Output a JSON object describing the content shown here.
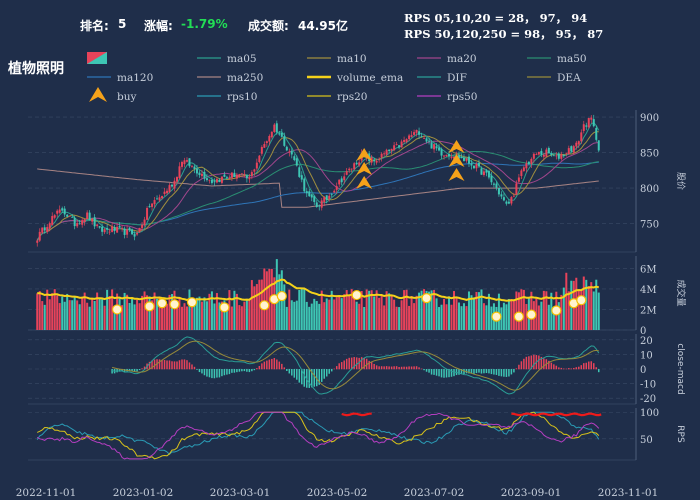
{
  "header": {
    "rank_label": "排名:",
    "rank_value": "5",
    "change_label": "涨幅:",
    "change_value": "-1.79%",
    "turnover_label": "成交额:",
    "turnover_value": "44.95亿",
    "rps_line1": "RPS 05,10,20 = 28， 97， 94",
    "rps_line2": "RPS 50,120,250 = 98， 95， 87",
    "sector": "植物照明"
  },
  "colors": {
    "background": "#1f2e4a",
    "up": "#e8435a",
    "down": "#3ec6b4",
    "ma05": "#2b9e8e",
    "ma10": "#a08e3e",
    "ma20": "#a0468c",
    "ma50": "#2a8e72",
    "ma120": "#2f75b8",
    "ma250": "#a88484",
    "volume_ema": "#f5d21a",
    "DIF": "#2a9e96",
    "DEA": "#968a3a",
    "buy": "#f5a21a",
    "rps10": "#2a9ab4",
    "rps20": "#d8c21a",
    "rps50": "#b43ec0"
  },
  "chart_data": [
    {
      "type": "candlestick",
      "panel": "price",
      "ylabel": "股价",
      "yticks": [
        750,
        800,
        850,
        900
      ],
      "ylim": [
        710,
        910
      ],
      "key_closes": [
        [
          0,
          730
        ],
        [
          5,
          755
        ],
        [
          10,
          770
        ],
        [
          15,
          750
        ],
        [
          20,
          762
        ],
        [
          25,
          740
        ],
        [
          30,
          742
        ],
        [
          40,
          735
        ],
        [
          45,
          775
        ],
        [
          50,
          790
        ],
        [
          55,
          810
        ],
        [
          58,
          840
        ],
        [
          62,
          830
        ],
        [
          65,
          822
        ],
        [
          70,
          810
        ],
        [
          75,
          815
        ],
        [
          80,
          820
        ],
        [
          85,
          812
        ],
        [
          90,
          855
        ],
        [
          95,
          888
        ],
        [
          98,
          870
        ],
        [
          103,
          840
        ],
        [
          108,
          790
        ],
        [
          112,
          775
        ],
        [
          116,
          785
        ],
        [
          120,
          805
        ],
        [
          125,
          825
        ],
        [
          130,
          845
        ],
        [
          135,
          838
        ],
        [
          140,
          850
        ],
        [
          145,
          860
        ],
        [
          150,
          875
        ],
        [
          153,
          880
        ],
        [
          158,
          860
        ],
        [
          162,
          850
        ],
        [
          166,
          848
        ],
        [
          170,
          842
        ],
        [
          175,
          832
        ],
        [
          180,
          818
        ],
        [
          184,
          800
        ],
        [
          188,
          775
        ],
        [
          190,
          785
        ],
        [
          195,
          830
        ],
        [
          200,
          848
        ],
        [
          204,
          850
        ],
        [
          208,
          842
        ],
        [
          212,
          852
        ],
        [
          216,
          860
        ],
        [
          219,
          888
        ],
        [
          222,
          897
        ],
        [
          225,
          858
        ]
      ],
      "ma250_points": [
        [
          0,
          827
        ],
        [
          40,
          812
        ],
        [
          70,
          803
        ],
        [
          97,
          807
        ],
        [
          98,
          773
        ],
        [
          108,
          773
        ],
        [
          140,
          787
        ],
        [
          170,
          800
        ],
        [
          200,
          800
        ],
        [
          225,
          810
        ]
      ]
    },
    {
      "type": "bar",
      "panel": "volume",
      "ylabel": "成交量",
      "yticks": [
        "0",
        "2M",
        "4M",
        "6M"
      ],
      "ylim": [
        0,
        7.2
      ],
      "unit": "M"
    },
    {
      "type": "bar",
      "panel": "macd",
      "ylabel": "close-macd",
      "yticks": [
        -20,
        -10,
        0,
        10,
        20
      ],
      "ylim": [
        -24,
        24
      ]
    },
    {
      "type": "line",
      "panel": "rps",
      "ylabel": "RPS",
      "yticks": [
        50,
        100
      ],
      "ylim": [
        10,
        108
      ],
      "series": [
        {
          "name": "rps10"
        },
        {
          "name": "rps20"
        },
        {
          "name": "rps50"
        }
      ]
    }
  ],
  "x_axis": {
    "labels": [
      "2022-11-01",
      "2023-01-02",
      "2023-03-01",
      "2023-05-02",
      "2023-07-02",
      "2023-09-01",
      "2023-11-01"
    ]
  },
  "legend": {
    "items": [
      {
        "label": "ma05",
        "color": "#2b9e8e",
        "kind": "line"
      },
      {
        "label": "ma10",
        "color": "#a08e3e",
        "kind": "line"
      },
      {
        "label": "ma20",
        "color": "#a0468c",
        "kind": "line"
      },
      {
        "label": "ma50",
        "color": "#2a8e72",
        "kind": "line"
      },
      {
        "label": "ma120",
        "color": "#2f75b8",
        "kind": "line"
      },
      {
        "label": "ma250",
        "color": "#a88484",
        "kind": "line"
      },
      {
        "label": "volume_ema",
        "color": "#f5d21a",
        "kind": "thick"
      },
      {
        "label": "DIF",
        "color": "#2a9e96",
        "kind": "line"
      },
      {
        "label": "DEA",
        "color": "#968a3a",
        "kind": "line"
      },
      {
        "label": "buy",
        "color": "#f5a21a",
        "kind": "marker"
      },
      {
        "label": "rps10",
        "color": "#2a9ab4",
        "kind": "line"
      },
      {
        "label": "rps20",
        "color": "#d8c21a",
        "kind": "line"
      },
      {
        "label": "rps50",
        "color": "#b43ec0",
        "kind": "line"
      }
    ]
  }
}
